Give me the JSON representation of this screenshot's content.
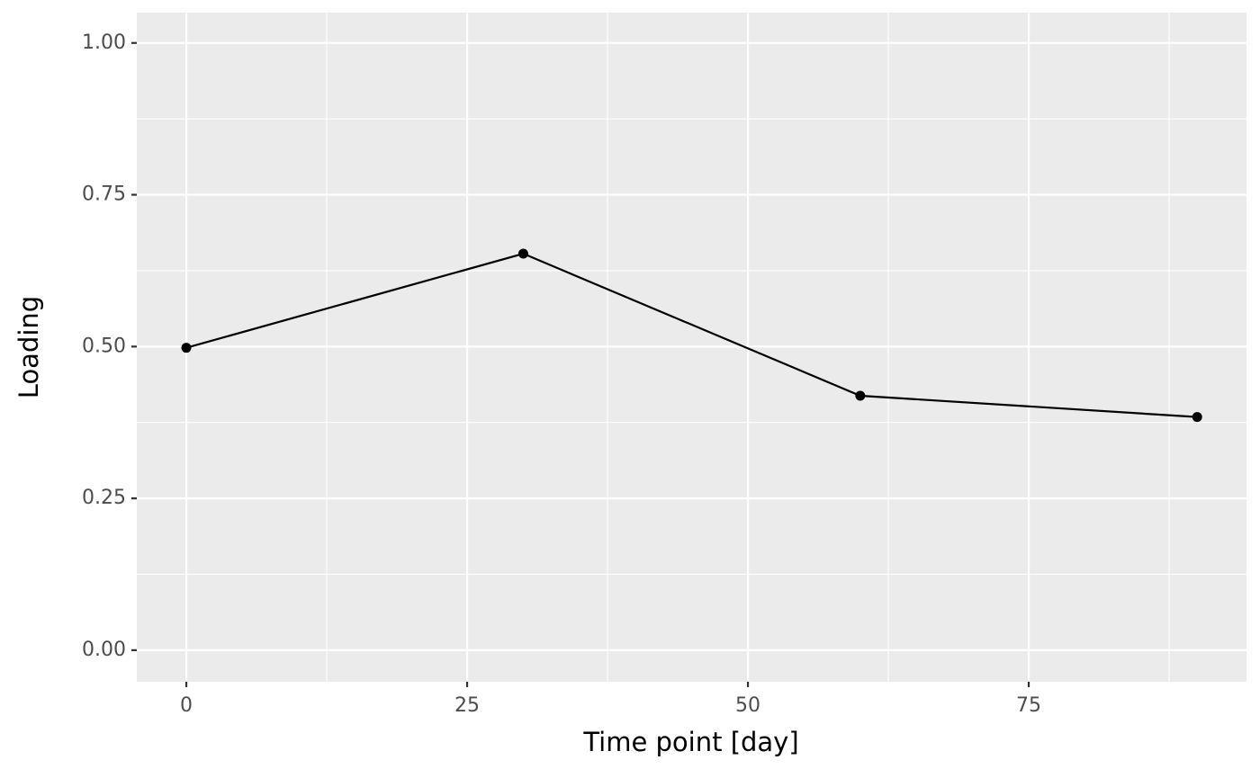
{
  "chart_data": {
    "type": "line",
    "x_label": "Time point [day]",
    "y_label": "Loading",
    "x": [
      0,
      30,
      60,
      90
    ],
    "series": [
      {
        "color": "#000000",
        "values": [
          0.498,
          0.653,
          0.419,
          0.384
        ]
      }
    ],
    "xlim": [
      -4.41,
      94.39
    ],
    "ylim": [
      -0.052,
      1.05
    ],
    "xticks": [
      0,
      25,
      50,
      75
    ],
    "yticks": [
      {
        "value": 0,
        "label": "0.00"
      },
      {
        "value": 0.25,
        "label": "0.25"
      },
      {
        "value": 0.5,
        "label": "0.50"
      },
      {
        "value": 0.75,
        "label": "0.75"
      },
      {
        "value": 1,
        "label": "1.00"
      }
    ],
    "xminor": [
      12.5,
      37.5,
      62.5,
      87.5
    ],
    "yminor": [
      0.125,
      0.375,
      0.625,
      0.875
    ],
    "grid": true,
    "background": "#ebebeb",
    "grid_color": "#ffffff"
  }
}
